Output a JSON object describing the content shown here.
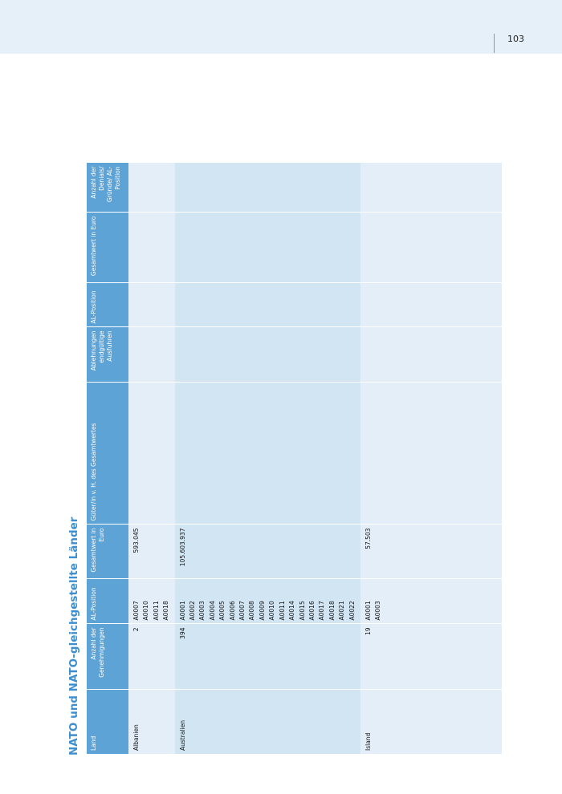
{
  "header": {
    "page_number": "103"
  },
  "title": "NATO und NATO-gleichgestellte Länder",
  "table": {
    "columns": [
      "Land",
      "Anzahl der Genehmigungen",
      "AL-Position",
      "Gesamtwert in Euro",
      "Güter/in v. H. des Gesamtwertes",
      "Ablehnungen endgültige Ausfuhren",
      "AL-Position",
      "Gesamtwert in Euro",
      "Anzahl der Denials/ Gründe/ AL-Position"
    ],
    "rows": [
      {
        "land": "Albanien",
        "anzahl": "2",
        "al_positionen": [
          "A0007",
          "A0010",
          "A0011",
          "A0018"
        ],
        "gesamtwert": "593.045"
      },
      {
        "land": "Australien",
        "anzahl": "394",
        "al_positionen": [
          "A0001",
          "A0002",
          "A0003",
          "A0004",
          "A0005",
          "A0006",
          "A0007",
          "A0008",
          "A0009",
          "A0010",
          "A0011",
          "A0014",
          "A0015",
          "A0016",
          "A0017",
          "A0018",
          "A0021",
          "A0022"
        ],
        "gesamtwert": "105.603.937"
      },
      {
        "land": "Island",
        "anzahl": "19",
        "al_positionen": [
          "A0001",
          "A0003"
        ],
        "gesamtwert": "57.503"
      }
    ]
  }
}
